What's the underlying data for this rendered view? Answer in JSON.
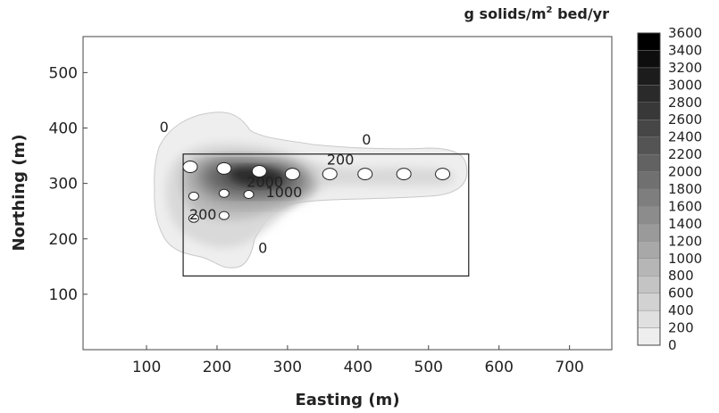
{
  "chart_data": {
    "type": "heatmap",
    "title": "",
    "xlabel": "Easting (m)",
    "ylabel": "Northing (m)",
    "colorbar_label": "g solids/m² bed/yr",
    "colorbar_label_base": "g solids/m",
    "colorbar_label_sup": "2",
    "colorbar_label_rest": " bed/yr",
    "xlim": [
      10,
      760
    ],
    "ylim": [
      0,
      565
    ],
    "x_ticks": [
      100,
      200,
      300,
      400,
      500,
      600,
      700
    ],
    "y_ticks": [
      100,
      200,
      300,
      400,
      500
    ],
    "x_tick_labels": [
      "100",
      "200",
      "300",
      "400",
      "500",
      "600",
      "700"
    ],
    "y_tick_labels": [
      "100",
      "200",
      "300",
      "400",
      "500"
    ],
    "colorbar_levels": [
      0,
      200,
      400,
      600,
      800,
      1000,
      1200,
      1400,
      1600,
      1800,
      2000,
      2200,
      2400,
      2600,
      2800,
      3000,
      3200,
      3400,
      3600
    ],
    "colorbar_tick_labels": [
      "0",
      "200",
      "400",
      "600",
      "800",
      "1000",
      "1200",
      "1400",
      "1600",
      "1800",
      "2000",
      "2200",
      "2400",
      "2600",
      "2800",
      "3000",
      "3200",
      "3400",
      "3600"
    ],
    "site_boundary": {
      "x": [
        152,
        557
      ],
      "y": [
        133,
        353
      ]
    },
    "contour_labels": [
      {
        "text": "0",
        "x": 125,
        "y": 393
      },
      {
        "text": "0",
        "x": 412,
        "y": 370
      },
      {
        "text": "0",
        "x": 265,
        "y": 175
      },
      {
        "text": "200",
        "x": 375,
        "y": 334
      },
      {
        "text": "200",
        "x": 180,
        "y": 235
      },
      {
        "text": "2000",
        "x": 268,
        "y": 294
      },
      {
        "text": "1000",
        "x": 295,
        "y": 275
      }
    ],
    "sources": [
      {
        "x": 162,
        "y": 330,
        "dark": false
      },
      {
        "x": 210,
        "y": 327,
        "dark": false
      },
      {
        "x": 260,
        "y": 322,
        "dark": false
      },
      {
        "x": 307,
        "y": 317,
        "dark": false
      },
      {
        "x": 360,
        "y": 317,
        "dark": false
      },
      {
        "x": 410,
        "y": 317,
        "dark": false
      },
      {
        "x": 465,
        "y": 317,
        "dark": false
      },
      {
        "x": 520,
        "y": 317,
        "dark": false
      },
      {
        "x": 167,
        "y": 277,
        "dark": false
      },
      {
        "x": 210,
        "y": 282,
        "dark": false
      },
      {
        "x": 245,
        "y": 280,
        "dark": false
      },
      {
        "x": 167,
        "y": 237,
        "dark": false
      },
      {
        "x": 210,
        "y": 242,
        "dark": false
      }
    ],
    "grid": false,
    "legend": "right colorbar"
  }
}
